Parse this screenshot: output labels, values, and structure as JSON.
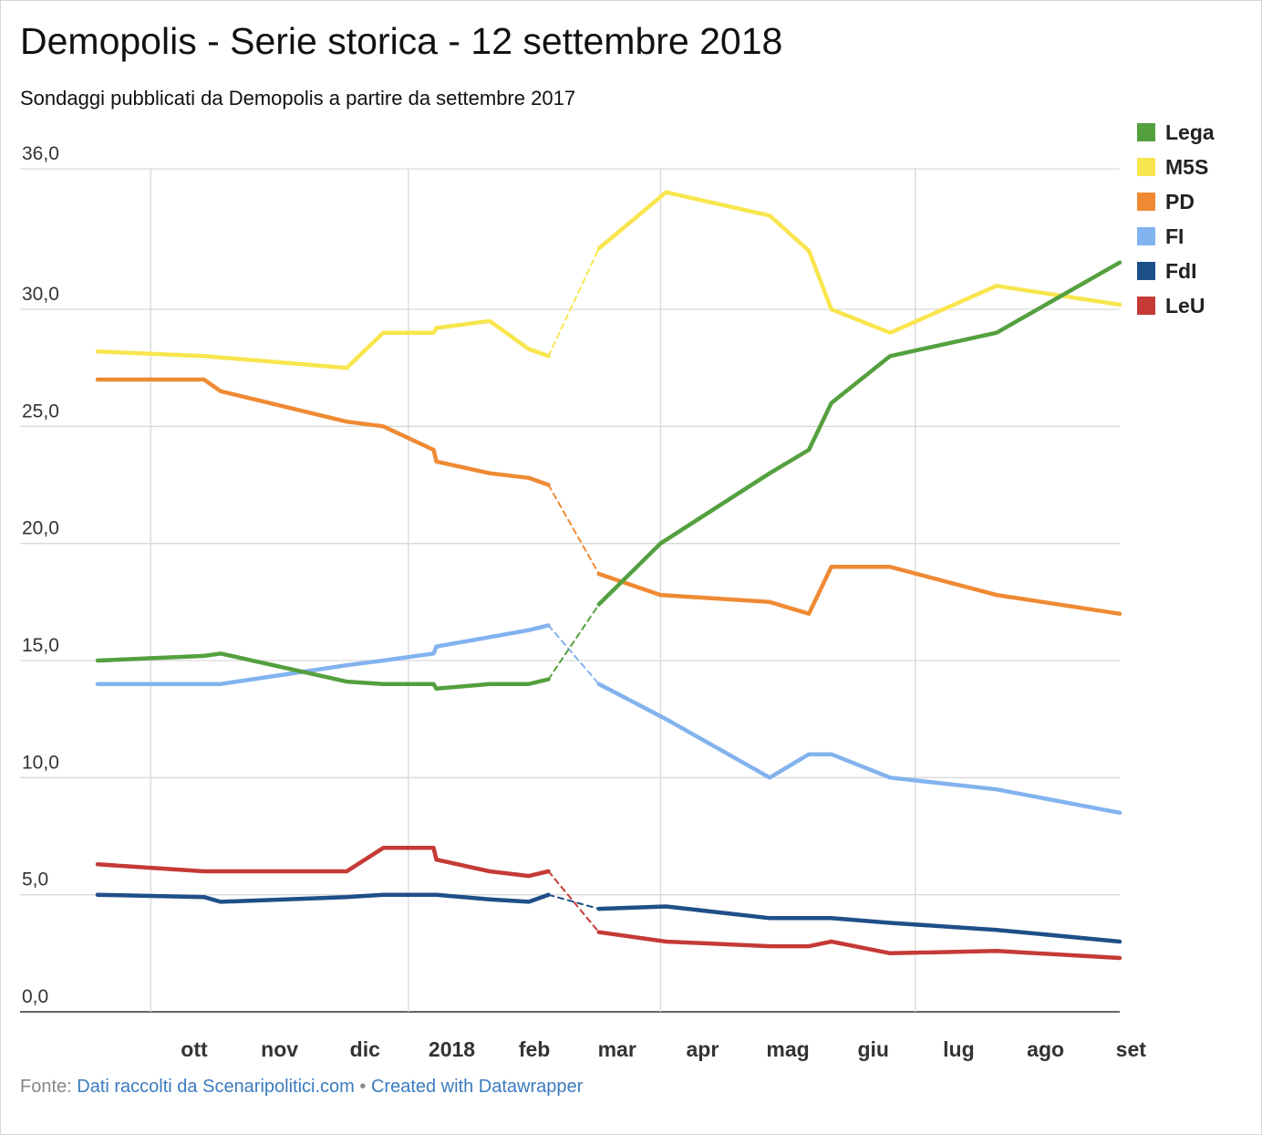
{
  "header": {
    "title": "Demopolis - Serie storica - 12 settembre 2018",
    "subtitle": "Sondaggi pubblicati da Demopolis a partire da settembre 2017"
  },
  "footer": {
    "prefix": "Fonte:",
    "source_link": "Dati raccolti da Scenaripolitici.com",
    "separator": "•",
    "credit_link": "Created with Datawrapper"
  },
  "chart_data": {
    "type": "line",
    "title": "Demopolis - Serie storica - 12 settembre 2018",
    "subtitle": "Sondaggi pubblicati da Demopolis a partire da settembre 2017",
    "xlabel": "",
    "ylabel": "",
    "x_axis": {
      "type": "date",
      "range": [
        "2017-09-12",
        "2018-09-12"
      ],
      "ticks": [
        {
          "date": "2017-10-01",
          "label": "ott"
        },
        {
          "date": "2017-11-01",
          "label": "nov"
        },
        {
          "date": "2017-12-01",
          "label": "dic"
        },
        {
          "date": "2018-01-01",
          "label": "2018"
        },
        {
          "date": "2018-02-01",
          "label": "feb"
        },
        {
          "date": "2018-03-01",
          "label": "mar"
        },
        {
          "date": "2018-04-01",
          "label": "apr"
        },
        {
          "date": "2018-05-01",
          "label": "mag"
        },
        {
          "date": "2018-06-01",
          "label": "giu"
        },
        {
          "date": "2018-07-01",
          "label": "lug"
        },
        {
          "date": "2018-08-01",
          "label": "ago"
        },
        {
          "date": "2018-09-01",
          "label": "set"
        }
      ],
      "gridlines_at": [
        "2017-10-01",
        "2018-01-01",
        "2018-04-01",
        "2018-07-01"
      ]
    },
    "y_axis": {
      "range": [
        0,
        36
      ],
      "ticks": [
        {
          "value": 0,
          "label": "0,0"
        },
        {
          "value": 5,
          "label": "5,0"
        },
        {
          "value": 10,
          "label": "10,0"
        },
        {
          "value": 15,
          "label": "15,0"
        },
        {
          "value": 20,
          "label": "20,0"
        },
        {
          "value": 25,
          "label": "25,0"
        },
        {
          "value": 30,
          "label": "30,0"
        },
        {
          "value": 36,
          "label": "36,0"
        }
      ]
    },
    "grid": true,
    "legend_position": "top-right",
    "dashed_segment": [
      "2018-02-20",
      "2018-03-10"
    ],
    "series": [
      {
        "name": "Lega",
        "color": "#54a03f",
        "points": [
          [
            "2017-09-12",
            15.0
          ],
          [
            "2017-10-20",
            15.2
          ],
          [
            "2017-10-26",
            15.3
          ],
          [
            "2017-12-10",
            14.1
          ],
          [
            "2017-12-23",
            14.0
          ],
          [
            "2018-01-10",
            14.0
          ],
          [
            "2018-01-11",
            13.8
          ],
          [
            "2018-01-30",
            14.0
          ],
          [
            "2018-02-13",
            14.0
          ],
          [
            "2018-02-20",
            14.2
          ],
          [
            "2018-03-10",
            17.4
          ],
          [
            "2018-04-01",
            20.0
          ],
          [
            "2018-05-10",
            23.0
          ],
          [
            "2018-05-24",
            24.0
          ],
          [
            "2018-06-01",
            26.0
          ],
          [
            "2018-06-22",
            28.0
          ],
          [
            "2018-07-30",
            29.0
          ],
          [
            "2018-09-12",
            32.0
          ]
        ]
      },
      {
        "name": "M5S",
        "color": "#f9e54e",
        "points": [
          [
            "2017-09-12",
            28.2
          ],
          [
            "2017-10-20",
            28.0
          ],
          [
            "2017-12-10",
            27.5
          ],
          [
            "2017-12-23",
            29.0
          ],
          [
            "2018-01-10",
            29.0
          ],
          [
            "2018-01-11",
            29.2
          ],
          [
            "2018-01-30",
            29.5
          ],
          [
            "2018-02-13",
            28.3
          ],
          [
            "2018-02-20",
            28.0
          ],
          [
            "2018-03-10",
            32.6
          ],
          [
            "2018-04-03",
            35.0
          ],
          [
            "2018-05-10",
            34.0
          ],
          [
            "2018-05-24",
            32.5
          ],
          [
            "2018-06-01",
            30.0
          ],
          [
            "2018-06-22",
            29.0
          ],
          [
            "2018-07-30",
            31.0
          ],
          [
            "2018-09-12",
            30.2
          ]
        ]
      },
      {
        "name": "PD",
        "color": "#ef8a34",
        "points": [
          [
            "2017-09-12",
            27.0
          ],
          [
            "2017-10-20",
            27.0
          ],
          [
            "2017-10-26",
            26.5
          ],
          [
            "2017-12-10",
            25.2
          ],
          [
            "2017-12-23",
            25.0
          ],
          [
            "2018-01-10",
            24.0
          ],
          [
            "2018-01-11",
            23.5
          ],
          [
            "2018-01-30",
            23.0
          ],
          [
            "2018-02-13",
            22.8
          ],
          [
            "2018-02-20",
            22.5
          ],
          [
            "2018-03-10",
            18.7
          ],
          [
            "2018-04-01",
            17.8
          ],
          [
            "2018-05-10",
            17.5
          ],
          [
            "2018-05-24",
            17.0
          ],
          [
            "2018-06-01",
            19.0
          ],
          [
            "2018-06-22",
            19.0
          ],
          [
            "2018-07-30",
            17.8
          ],
          [
            "2018-09-12",
            17.0
          ]
        ]
      },
      {
        "name": "FI",
        "color": "#82b3ee",
        "points": [
          [
            "2017-09-12",
            14.0
          ],
          [
            "2017-10-20",
            14.0
          ],
          [
            "2017-10-26",
            14.0
          ],
          [
            "2017-12-10",
            14.8
          ],
          [
            "2017-12-23",
            15.0
          ],
          [
            "2018-01-10",
            15.3
          ],
          [
            "2018-01-11",
            15.6
          ],
          [
            "2018-01-30",
            16.0
          ],
          [
            "2018-02-13",
            16.3
          ],
          [
            "2018-02-20",
            16.5
          ],
          [
            "2018-03-10",
            14.0
          ],
          [
            "2018-04-03",
            12.5
          ],
          [
            "2018-05-10",
            10.0
          ],
          [
            "2018-05-24",
            11.0
          ],
          [
            "2018-06-01",
            11.0
          ],
          [
            "2018-06-22",
            10.0
          ],
          [
            "2018-07-30",
            9.5
          ],
          [
            "2018-09-12",
            8.5
          ]
        ]
      },
      {
        "name": "FdI",
        "color": "#1f4f88",
        "points": [
          [
            "2017-09-12",
            5.0
          ],
          [
            "2017-10-20",
            4.9
          ],
          [
            "2017-10-26",
            4.7
          ],
          [
            "2017-12-10",
            4.9
          ],
          [
            "2017-12-23",
            5.0
          ],
          [
            "2018-01-10",
            5.0
          ],
          [
            "2018-01-11",
            5.0
          ],
          [
            "2018-01-30",
            4.8
          ],
          [
            "2018-02-13",
            4.7
          ],
          [
            "2018-02-20",
            5.0
          ],
          [
            "2018-03-10",
            4.4
          ],
          [
            "2018-04-03",
            4.5
          ],
          [
            "2018-05-10",
            4.0
          ],
          [
            "2018-05-24",
            4.0
          ],
          [
            "2018-06-01",
            4.0
          ],
          [
            "2018-06-22",
            3.8
          ],
          [
            "2018-07-30",
            3.5
          ],
          [
            "2018-09-12",
            3.0
          ]
        ]
      },
      {
        "name": "LeU",
        "color": "#c53a36",
        "points": [
          [
            "2017-09-12",
            6.3
          ],
          [
            "2017-10-20",
            6.0
          ],
          [
            "2017-10-26",
            6.0
          ],
          [
            "2017-12-10",
            6.0
          ],
          [
            "2017-12-23",
            7.0
          ],
          [
            "2018-01-10",
            7.0
          ],
          [
            "2018-01-11",
            6.5
          ],
          [
            "2018-01-30",
            6.0
          ],
          [
            "2018-02-13",
            5.8
          ],
          [
            "2018-02-20",
            6.0
          ],
          [
            "2018-03-10",
            3.4
          ],
          [
            "2018-04-03",
            3.0
          ],
          [
            "2018-05-10",
            2.8
          ],
          [
            "2018-05-24",
            2.8
          ],
          [
            "2018-06-01",
            3.0
          ],
          [
            "2018-06-22",
            2.5
          ],
          [
            "2018-07-30",
            2.6
          ],
          [
            "2018-09-12",
            2.3
          ]
        ]
      }
    ]
  }
}
